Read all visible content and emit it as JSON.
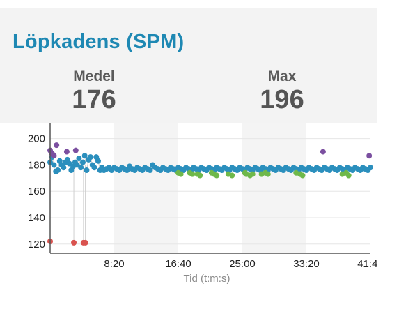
{
  "title": "Löpkadens (SPM)",
  "stats": {
    "avg_label": "Medel",
    "avg_value": "176",
    "max_label": "Max",
    "max_value": "196"
  },
  "chart_data": {
    "type": "scatter",
    "xlabel": "Tid (t:m:s)",
    "ylabel": "",
    "x_tick_labels": [
      "8:20",
      "16:40",
      "25:00",
      "33:20",
      "41:40"
    ],
    "y_tick_labels": [
      "200",
      "180",
      "160",
      "140",
      "120"
    ],
    "xlim": [
      0,
      2500
    ],
    "ylim": [
      113,
      212
    ],
    "series": [
      {
        "color": "#2b8fbd",
        "x": [
          0,
          15,
          30,
          45,
          60,
          75,
          90,
          105,
          120,
          135,
          150,
          165,
          180,
          195,
          210,
          225,
          240,
          255,
          270,
          285,
          300,
          315,
          330,
          345,
          360,
          375,
          390,
          405,
          420,
          440,
          460,
          480,
          500,
          520,
          540,
          560,
          580,
          600,
          620,
          640,
          660,
          680,
          700,
          720,
          740,
          760,
          780,
          800,
          820,
          840,
          860,
          880,
          900,
          920,
          940,
          960,
          980,
          1000,
          1020,
          1040,
          1060,
          1080,
          1100,
          1120,
          1140,
          1160,
          1180,
          1200,
          1220,
          1240,
          1260,
          1280,
          1300,
          1320,
          1340,
          1360,
          1380,
          1400,
          1420,
          1440,
          1460,
          1480,
          1500,
          1520,
          1540,
          1560,
          1580,
          1600,
          1620,
          1640,
          1660,
          1680,
          1700,
          1720,
          1740,
          1760,
          1780,
          1800,
          1820,
          1840,
          1860,
          1880,
          1900,
          1920,
          1940,
          1960,
          1980,
          2000,
          2020,
          2040,
          2060,
          2080,
          2100,
          2120,
          2140,
          2160,
          2180,
          2200,
          2220,
          2240,
          2260,
          2280,
          2300,
          2320,
          2340,
          2360,
          2380,
          2400,
          2420,
          2440,
          2460,
          2480,
          2500
        ],
        "values": [
          182,
          186,
          180,
          175,
          176,
          183,
          180,
          178,
          182,
          184,
          181,
          176,
          179,
          182,
          180,
          185,
          178,
          182,
          187,
          176,
          184,
          186,
          180,
          178,
          186,
          183,
          176,
          178,
          176,
          177,
          178,
          176,
          178,
          177,
          176,
          178,
          177,
          176,
          179,
          177,
          176,
          178,
          177,
          176,
          178,
          177,
          176,
          180,
          178,
          177,
          176,
          178,
          177,
          176,
          178,
          177,
          176,
          178,
          177,
          176,
          178,
          177,
          176,
          178,
          177,
          176,
          178,
          177,
          176,
          178,
          177,
          176,
          178,
          177,
          176,
          178,
          177,
          176,
          178,
          177,
          176,
          178,
          177,
          176,
          178,
          177,
          176,
          178,
          177,
          176,
          178,
          177,
          176,
          178,
          177,
          176,
          178,
          177,
          176,
          178,
          177,
          176,
          178,
          177,
          176,
          178,
          177,
          176,
          178,
          177,
          176,
          178,
          177,
          176,
          178,
          177,
          176,
          178,
          177,
          176,
          178,
          177,
          176,
          178,
          177,
          176,
          178,
          177,
          176,
          178,
          177,
          176,
          178
        ]
      },
      {
        "color": "#6fb84a",
        "x": [
          1000,
          1020,
          1090,
          1110,
          1150,
          1170,
          1260,
          1280,
          1300,
          1390,
          1420,
          1520,
          1530,
          1560,
          1580,
          1650,
          1680,
          1700,
          1920,
          1950,
          1970,
          2280,
          2310,
          2330
        ],
        "values": [
          174,
          173,
          174,
          173,
          173,
          172,
          174,
          173,
          172,
          173,
          172,
          174,
          173,
          172,
          173,
          173,
          174,
          173,
          174,
          173,
          172,
          173,
          174,
          172
        ]
      },
      {
        "color": "#7b4fa0",
        "x": [
          0,
          10,
          20,
          30,
          50,
          130,
          200,
          2130,
          2490
        ],
        "values": [
          191,
          189,
          188,
          187,
          195,
          190,
          191,
          190,
          187
        ]
      },
      {
        "color": "#d9534f",
        "x": [
          0,
          185,
          260,
          275
        ],
        "values": [
          122,
          121,
          121,
          121
        ]
      }
    ],
    "grid": "horizontal",
    "legend": "none"
  }
}
